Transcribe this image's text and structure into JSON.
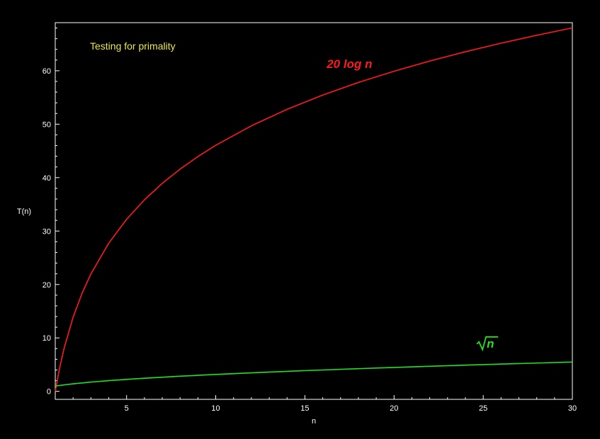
{
  "chart_data": {
    "type": "line",
    "title": "Testing for primality",
    "xlabel": "n",
    "ylabel": "T(n)",
    "xlim": [
      1,
      30
    ],
    "ylim": [
      -1.5,
      69
    ],
    "x_ticks": [
      5,
      10,
      15,
      20,
      25,
      30
    ],
    "y_ticks": [
      0,
      10,
      20,
      30,
      40,
      50,
      60
    ],
    "grid": false,
    "background": "#000000",
    "series": [
      {
        "name": "20 log n",
        "color": "#ff1a1a",
        "x": [
          1,
          1.25,
          1.5,
          2,
          2.5,
          3,
          4,
          5,
          6,
          7,
          8,
          9,
          10,
          12,
          14,
          16,
          18,
          20,
          22,
          24,
          26,
          28,
          30
        ],
        "values": [
          0,
          4.46,
          8.11,
          13.86,
          18.33,
          21.97,
          27.73,
          32.19,
          35.84,
          38.92,
          41.59,
          43.94,
          46.05,
          49.7,
          52.78,
          55.45,
          57.81,
          59.91,
          61.82,
          63.56,
          65.16,
          66.64,
          68.02
        ]
      },
      {
        "name": "√n",
        "color": "#22e022",
        "x": [
          1,
          2,
          3,
          4,
          5,
          6,
          8,
          10,
          12,
          14,
          16,
          18,
          20,
          22,
          24,
          26,
          28,
          30
        ],
        "values": [
          1,
          1.41,
          1.73,
          2,
          2.24,
          2.45,
          2.83,
          3.16,
          3.46,
          3.74,
          4,
          4.24,
          4.47,
          4.69,
          4.9,
          5.1,
          5.29,
          5.48
        ]
      }
    ],
    "annotations": [
      {
        "text": "20 log n",
        "x": 17.5,
        "y": 60.5,
        "color": "#ff1a1a"
      },
      {
        "text": "n",
        "x": 25.2,
        "y": 8.2,
        "color": "#22e022",
        "radical": true
      }
    ]
  }
}
